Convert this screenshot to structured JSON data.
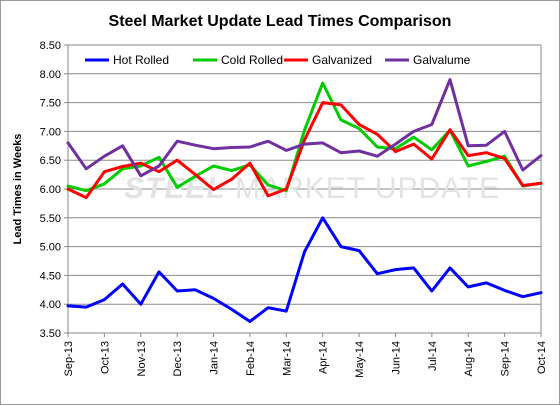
{
  "chart_data": {
    "type": "line",
    "title": "Steel Market Update Lead Times Comparison",
    "ylabel": "Lead Times in Weeks",
    "xlabel": "",
    "ylim": [
      3.5,
      8.5
    ],
    "yticks": [
      "3.50",
      "4.00",
      "4.50",
      "5.00",
      "5.50",
      "6.00",
      "6.50",
      "7.00",
      "7.50",
      "8.00",
      "8.50"
    ],
    "ytick_values": [
      3.5,
      4.0,
      4.5,
      5.0,
      5.5,
      6.0,
      6.5,
      7.0,
      7.5,
      8.0,
      8.5
    ],
    "x_tick_labels": [
      "Sep-13",
      "Oct-13",
      "Nov-13",
      "Dec-13",
      "Jan-14",
      "Feb-14",
      "Mar-14",
      "Apr-14",
      "May-14",
      "Jun-14",
      "Jul-14",
      "Aug-14",
      "Sep-14",
      "Oct-14"
    ],
    "grid": true,
    "legend_position": "top",
    "watermark": {
      "bold": "STEEL",
      "regular": " MARKET UPDATE"
    },
    "series": [
      {
        "name": "Hot Rolled",
        "color": "#0000ff",
        "values": [
          3.97,
          3.95,
          4.08,
          4.35,
          4.0,
          4.56,
          4.23,
          4.25,
          4.1,
          3.91,
          3.7,
          3.94,
          3.88,
          4.91,
          5.5,
          5.0,
          4.93,
          4.53,
          4.6,
          4.63,
          4.23,
          4.63,
          4.3,
          4.37,
          4.24,
          4.13,
          4.2
        ]
      },
      {
        "name": "Cold Rolled",
        "color": "#00cc00",
        "values": [
          6.05,
          5.97,
          6.09,
          6.35,
          6.4,
          6.55,
          6.03,
          6.22,
          6.4,
          6.32,
          6.42,
          6.07,
          5.97,
          7.02,
          7.84,
          7.2,
          7.05,
          6.73,
          6.7,
          6.9,
          6.68,
          7.02,
          6.4,
          6.48,
          6.57,
          6.05,
          6.1
        ]
      },
      {
        "name": "Galvanized",
        "color": "#ff0000",
        "values": [
          6.0,
          5.85,
          6.3,
          6.39,
          6.45,
          6.3,
          6.5,
          6.25,
          5.99,
          6.17,
          6.45,
          5.88,
          6.0,
          6.85,
          7.5,
          7.46,
          7.12,
          6.95,
          6.65,
          6.78,
          6.52,
          7.03,
          6.58,
          6.63,
          6.53,
          6.06,
          6.1
        ]
      },
      {
        "name": "Galvalume",
        "color": "#7030a0",
        "values": [
          6.8,
          6.35,
          6.57,
          6.75,
          6.23,
          6.4,
          6.83,
          6.76,
          6.7,
          6.72,
          6.73,
          6.83,
          6.67,
          6.78,
          6.8,
          6.63,
          6.66,
          6.57,
          6.78,
          7.0,
          7.12,
          7.9,
          6.75,
          6.76,
          7.0,
          6.33,
          6.58
        ]
      }
    ]
  }
}
